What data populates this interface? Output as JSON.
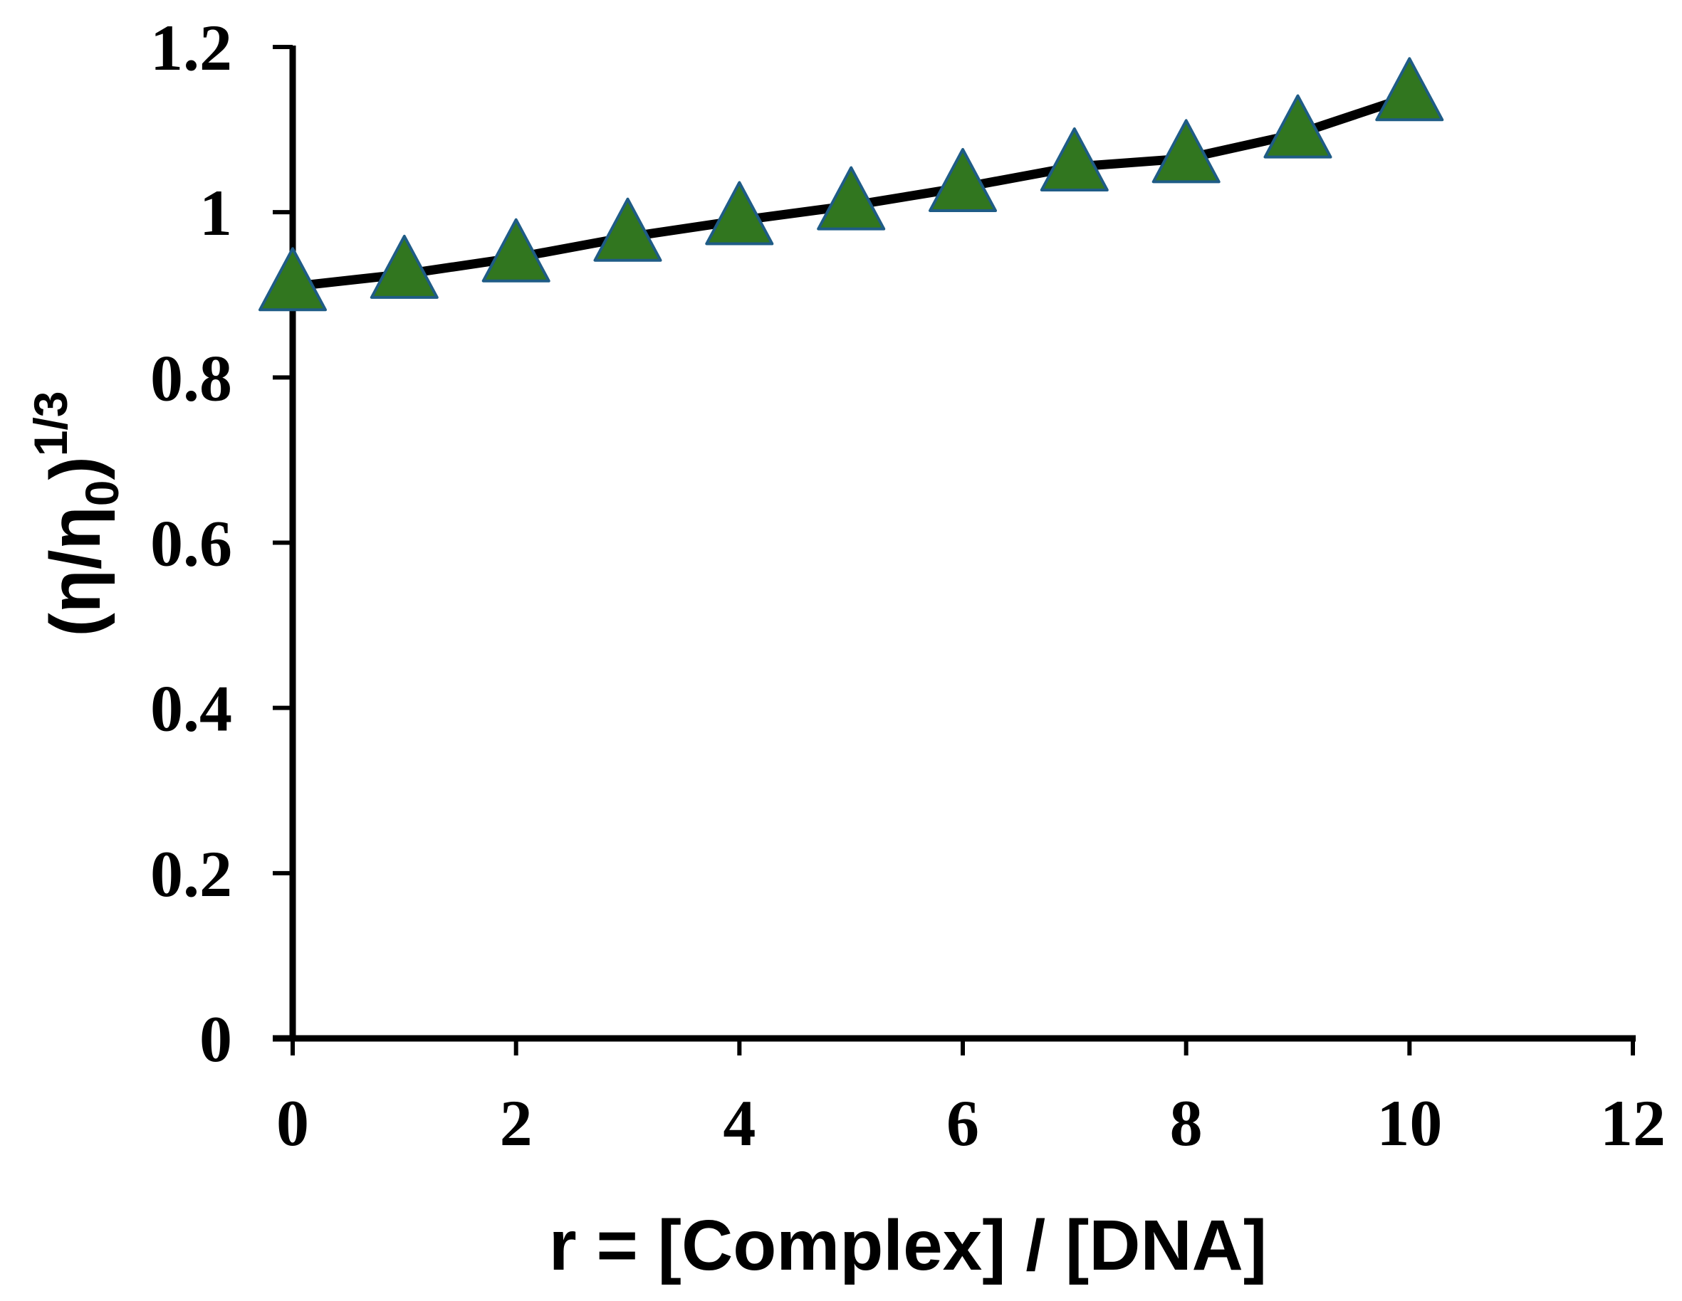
{
  "chart_data": {
    "type": "line",
    "title": "",
    "xlabel": "r = [Complex] / [DNA]",
    "ylabel": {
      "base": "(η/η",
      "subscript": "0",
      "close": ")",
      "superscript": "1/3"
    },
    "xlim": [
      0,
      12
    ],
    "ylim": [
      0,
      1.2
    ],
    "xticks": [
      "0",
      "2",
      "4",
      "6",
      "8",
      "10",
      "12"
    ],
    "yticks": [
      "0",
      "0.2",
      "0.4",
      "0.6",
      "0.8",
      "1",
      "1.2"
    ],
    "grid": false,
    "legend": "none",
    "series": [
      {
        "x": [
          0,
          1,
          2,
          3,
          4,
          5,
          6,
          7,
          8,
          9,
          10
        ],
        "y": [
          0.91,
          0.925,
          0.945,
          0.97,
          0.99,
          1.008,
          1.03,
          1.055,
          1.065,
          1.095,
          1.14
        ],
        "marker": "triangle",
        "line_color": "#000000",
        "marker_fill": "#31761f",
        "marker_edge": "#1f5c86"
      }
    ]
  }
}
